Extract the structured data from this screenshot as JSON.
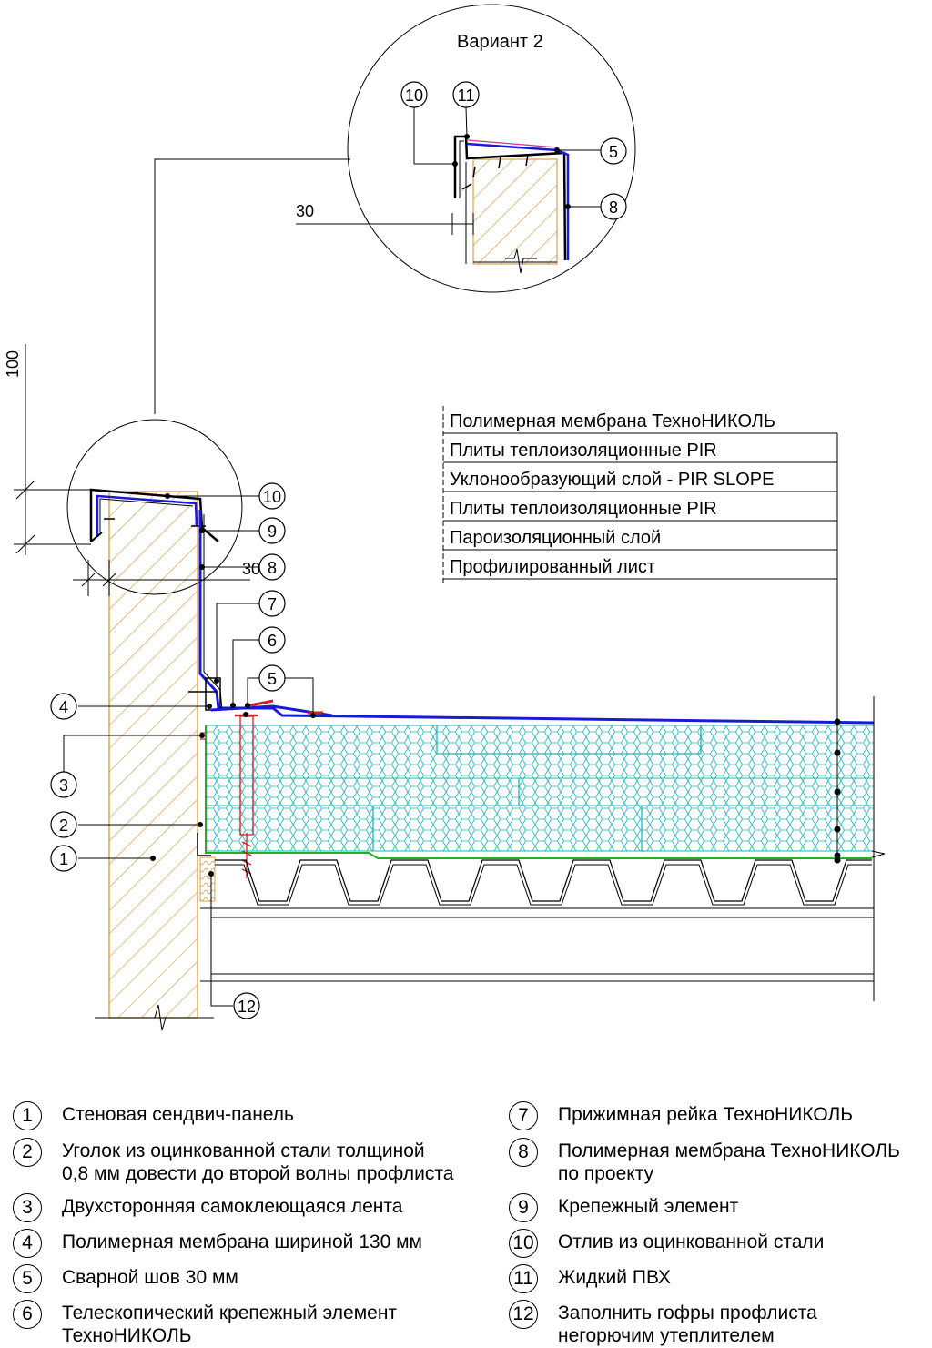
{
  "detail": {
    "variant_title": "Вариант 2",
    "dim_variant": "30",
    "dim_main": "30",
    "dim_height": "100"
  },
  "layers": [
    "Полимерная мембрана ТехноНИКОЛЬ",
    "Плиты теплоизоляционные PIR",
    "Уклонообразующий слой - PIR SLOPE",
    "Плиты теплоизоляционные PIR",
    "Пароизоляционный слой",
    "Профилированный лист"
  ],
  "callouts": [
    "1",
    "2",
    "3",
    "4",
    "5",
    "6",
    "7",
    "8",
    "9",
    "10",
    "11",
    "12"
  ],
  "legend": {
    "left": [
      {
        "num": "1",
        "text": "Стеновая сендвич-панель"
      },
      {
        "num": "2",
        "text": "Уголок из оцинкованной стали толщиной\n0,8 мм довести до второй волны профлиста"
      },
      {
        "num": "3",
        "text": "Двухсторонняя самоклеющаяся лента"
      },
      {
        "num": "4",
        "text": "Полимерная мембрана шириной 130 мм"
      },
      {
        "num": "5",
        "text": "Сварной шов 30 мм"
      },
      {
        "num": "6",
        "text": "Телескопический крепежный элемент\nТехноНИКОЛЬ"
      }
    ],
    "right": [
      {
        "num": "7",
        "text": "Прижимная рейка ТехноНИКОЛЬ"
      },
      {
        "num": "8",
        "text": "Полимерная мембрана ТехноНИКОЛЬ\nпо проекту"
      },
      {
        "num": "9",
        "text": "Крепежный элемент"
      },
      {
        "num": "10",
        "text": "Отлив из оцинкованной стали"
      },
      {
        "num": "11",
        "text": "Жидкий ПВХ"
      },
      {
        "num": "12",
        "text": "Заполнить гофры профлиста\nнегорючим утеплителем"
      }
    ]
  },
  "colors": {
    "membrane": "#1a1ad6",
    "insulation": "#19b6b6",
    "vapor": "#20b020",
    "panel": "#d8a050",
    "screw": "#cc2222",
    "line": "#000000"
  }
}
